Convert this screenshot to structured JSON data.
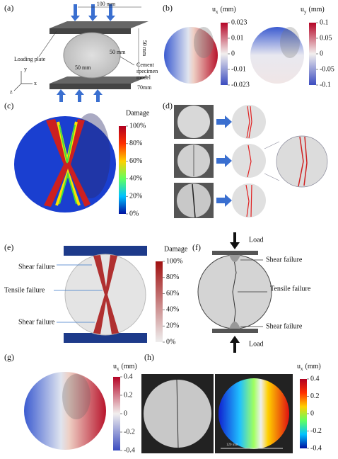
{
  "panels": {
    "a": {
      "label": "(a)",
      "width_dim": "100 mm",
      "height_dim": "50 mm",
      "radius_dim_1": "50 mm",
      "radius_dim_2": "50 mm",
      "depth_dim": "70mm",
      "plate_label": "Loading plate",
      "specimen_label": [
        "Cement",
        "specimen",
        "model"
      ],
      "axes": [
        "y",
        "x",
        "z"
      ]
    },
    "b": {
      "label": "(b)",
      "bar_1": {
        "symbol": "u",
        "subscript": "x",
        "unit": "(mm)",
        "ticks": [
          "0.023",
          "0.01",
          "0",
          "-0.01",
          "-0.023"
        ]
      },
      "bar_2": {
        "symbol": "u",
        "subscript": "y",
        "unit": "(mm)",
        "ticks": [
          "0.1",
          "0.05",
          "0",
          "-0.05",
          "-0.1"
        ]
      }
    },
    "c": {
      "label": "(c)",
      "bar": {
        "title": "Damage",
        "ticks": [
          "100%",
          "80%",
          "60%",
          "40%",
          "20%",
          "0%"
        ]
      }
    },
    "d": {
      "label": "(d)"
    },
    "e": {
      "label": "(e)",
      "bar": {
        "title": "Damage",
        "ticks": [
          "100%",
          "80%",
          "60%",
          "40%",
          "20%",
          "0%"
        ]
      },
      "annotations": [
        "Shear failure",
        "Tensile failure",
        "Shear failure"
      ]
    },
    "f": {
      "label": "(f)",
      "load_top": "Load",
      "load_bottom": "Load",
      "annotations": [
        "Shear failure",
        "Tensile failure",
        "Shear failure"
      ]
    },
    "g": {
      "label": "(g)",
      "bar": {
        "symbol": "u",
        "subscript": "x",
        "unit": "(mm)",
        "ticks": [
          "0.4",
          "0.2",
          "0",
          "-0.2",
          "-0.4"
        ]
      }
    },
    "h": {
      "label": "(h)",
      "scale_label": "120 mm",
      "bar": {
        "symbol": "u",
        "subscript": "x",
        "unit": "(mm)",
        "ticks": [
          "0.4",
          "0.2",
          "0",
          "-0.2",
          "-0.4"
        ]
      }
    }
  }
}
